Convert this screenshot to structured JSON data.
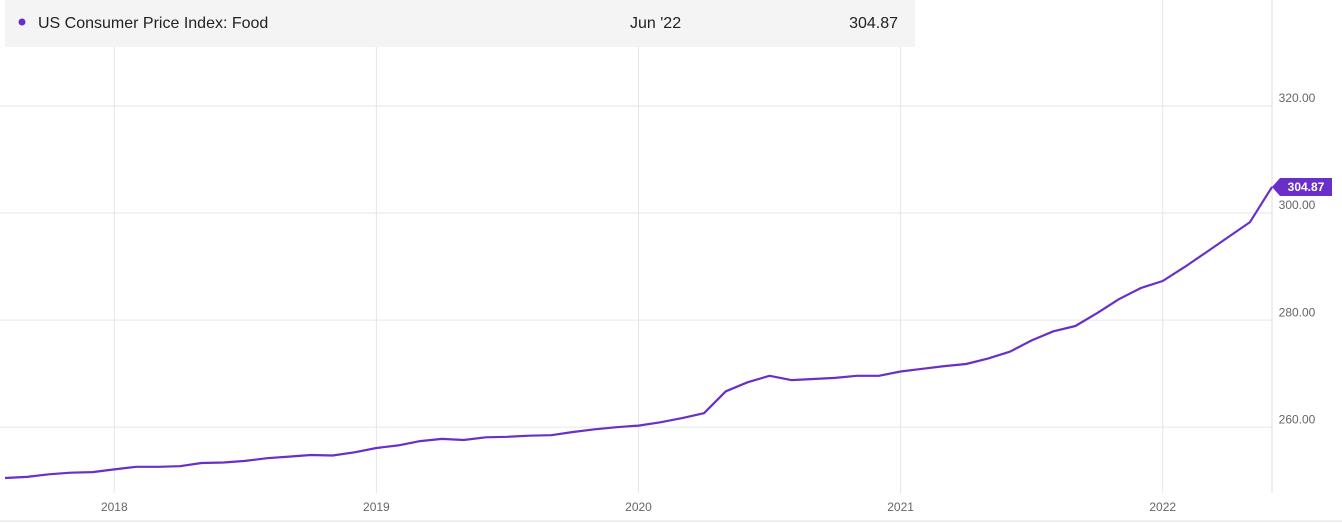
{
  "chart_data": {
    "type": "line",
    "header_date": "Jun '22",
    "x": [
      2017.583,
      2017.667,
      2017.75,
      2017.833,
      2017.917,
      2018.0,
      2018.083,
      2018.167,
      2018.25,
      2018.333,
      2018.417,
      2018.5,
      2018.583,
      2018.667,
      2018.75,
      2018.833,
      2018.917,
      2019.0,
      2019.083,
      2019.167,
      2019.25,
      2019.333,
      2019.417,
      2019.5,
      2019.583,
      2019.667,
      2019.75,
      2019.833,
      2019.917,
      2020.0,
      2020.083,
      2020.167,
      2020.25,
      2020.333,
      2020.417,
      2020.5,
      2020.583,
      2020.667,
      2020.75,
      2020.833,
      2020.917,
      2021.0,
      2021.083,
      2021.167,
      2021.25,
      2021.333,
      2021.417,
      2021.5,
      2021.583,
      2021.667,
      2021.75,
      2021.833,
      2021.917,
      2022.0,
      2022.083,
      2022.167,
      2022.25,
      2022.333,
      2022.417
    ],
    "series": [
      {
        "name": "US Consumer Price Index: Food",
        "color": "#6a2fc8",
        "values": [
          250.5,
          250.7,
          251.2,
          251.5,
          251.6,
          252.1,
          252.6,
          252.6,
          252.7,
          253.3,
          253.4,
          253.7,
          254.2,
          254.5,
          254.8,
          254.7,
          255.3,
          256.1,
          256.6,
          257.4,
          257.8,
          257.6,
          258.1,
          258.2,
          258.4,
          258.5,
          259.1,
          259.6,
          260.0,
          260.3,
          260.9,
          261.7,
          262.6,
          266.7,
          268.4,
          269.6,
          268.8,
          269.0,
          269.2,
          269.6,
          269.6,
          270.4,
          270.9,
          271.4,
          271.8,
          272.8,
          274.1,
          276.2,
          277.9,
          278.9,
          281.3,
          283.9,
          286.0,
          287.3,
          289.9,
          292.7,
          295.5,
          298.3,
          304.87
        ]
      }
    ],
    "xlim": [
      2017.583,
      2022.417
    ],
    "xticks": [
      2018,
      2019,
      2020,
      2021,
      2022
    ],
    "ylim": [
      247.7,
      339.8
    ],
    "yticks": [
      {
        "value": 260,
        "label": "260.00"
      },
      {
        "value": 280,
        "label": "280.00"
      },
      {
        "value": 300,
        "label": "300.00"
      },
      {
        "value": 320,
        "label": "320.00"
      }
    ],
    "grid": true
  }
}
